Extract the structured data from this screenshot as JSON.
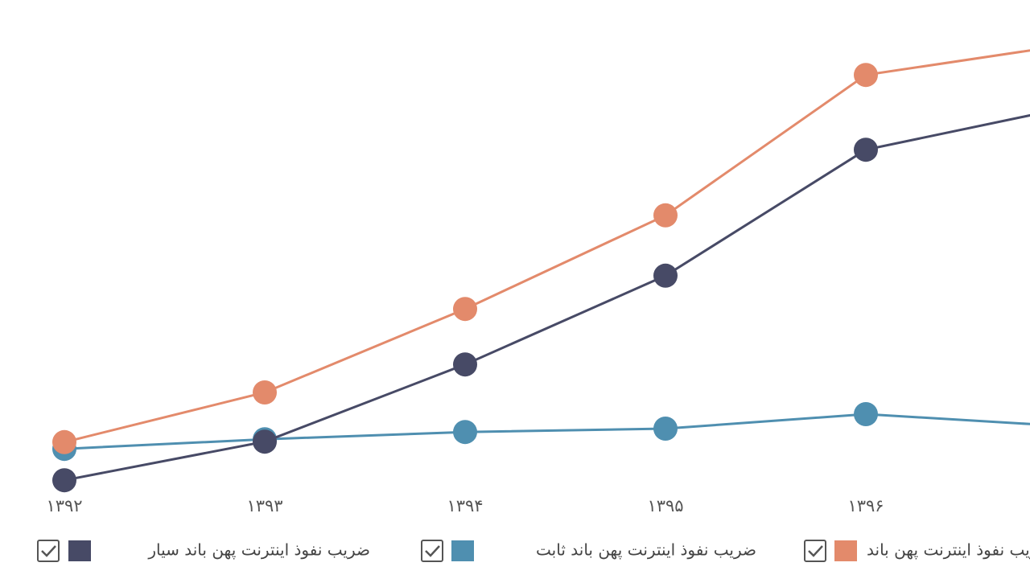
{
  "chart_data": {
    "type": "line",
    "categories": [
      "۱۳۹۲",
      "۱۳۹۳",
      "۱۳۹۴",
      "۱۳۹۵",
      "۱۳۹۶",
      null
    ],
    "series": [
      {
        "name": "ضریب نفوذ اینترنت پهن باند ثابت",
        "color": "#4f8fb0",
        "values": [
          10.3,
          12.3,
          13.8,
          14.5,
          17.5,
          15
        ]
      },
      {
        "name": "ضریب نفوذ اینترنت پهن باند سیار",
        "color": "#474a66",
        "values": [
          3.8,
          11.8,
          27.8,
          46.2,
          72.3,
          81
        ]
      },
      {
        "name": "ضریب نفوذ اینترنت پهن باند",
        "color": "#e38a6b",
        "values": [
          11.7,
          22,
          39.3,
          58.7,
          87.8,
          94
        ]
      }
    ],
    "legend_order": [
      1,
      0,
      2
    ],
    "ylim": [
      0,
      100
    ]
  }
}
